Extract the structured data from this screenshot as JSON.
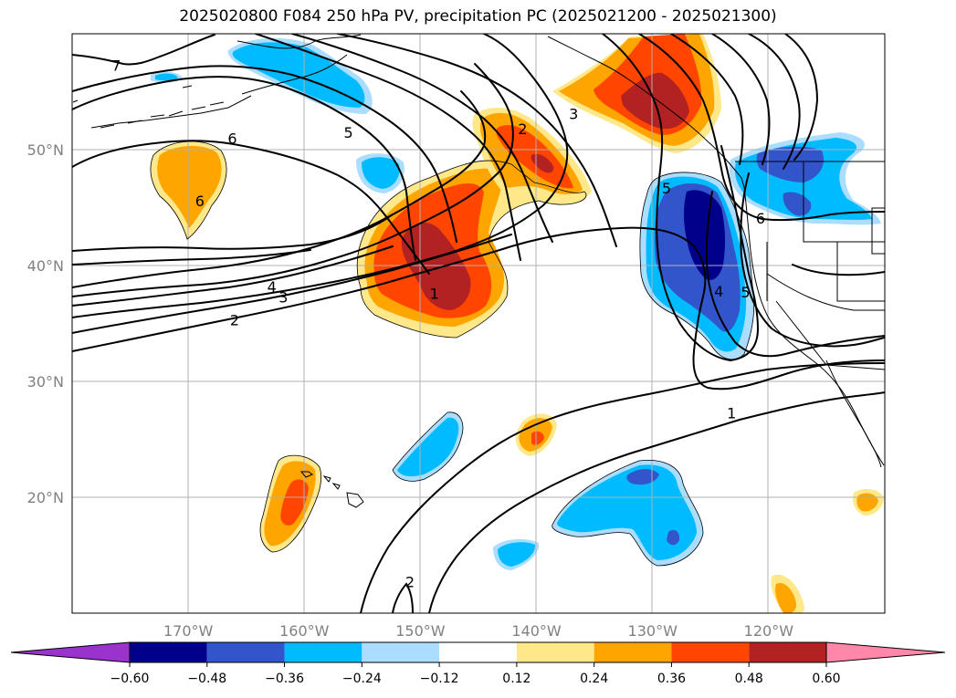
{
  "chart_data": {
    "type": "contour-map",
    "title": "2025020800 F084 250 hPa PV, precipitation PC (2025021200 - 2025021300)",
    "map_extent": {
      "lon": [
        -180,
        -110
      ],
      "lat": [
        10,
        60
      ]
    },
    "x_ticks": [
      {
        "lon": -170,
        "label": "170°W"
      },
      {
        "lon": -160,
        "label": "160°W"
      },
      {
        "lon": -150,
        "label": "150°W"
      },
      {
        "lon": -140,
        "label": "140°W"
      },
      {
        "lon": -130,
        "label": "130°W"
      },
      {
        "lon": -120,
        "label": "120°W"
      }
    ],
    "y_ticks": [
      {
        "lat": 50,
        "label": "50°N"
      },
      {
        "lat": 40,
        "label": "40°N"
      },
      {
        "lat": 30,
        "label": "30°N"
      },
      {
        "lat": 20,
        "label": "20°N"
      }
    ],
    "grid": true,
    "colorbar": {
      "levels": [
        -0.6,
        -0.48,
        -0.36,
        -0.24,
        -0.12,
        0.12,
        0.24,
        0.36,
        0.48,
        0.6
      ],
      "tick_labels": [
        "−0.60",
        "−0.48",
        "−0.36",
        "−0.24",
        "−0.12",
        "0.12",
        "0.24",
        "0.36",
        "0.48",
        "0.60"
      ],
      "colors": [
        "#9933cc",
        "#00008b",
        "#3355cc",
        "#00bbff",
        "#aaddff",
        "#ffffff",
        "#ffe88a",
        "#ffa500",
        "#ff4500",
        "#b22222",
        "#ff88aa"
      ],
      "extend": "both"
    },
    "pv_contour_labels": [
      {
        "value": "7",
        "lon": -176.2,
        "lat": 57.3
      },
      {
        "value": "6",
        "lon": -166.2,
        "lat": 51.0
      },
      {
        "value": "5",
        "lon": -156.2,
        "lat": 51.5
      },
      {
        "value": "6",
        "lon": -169.0,
        "lat": 45.6
      },
      {
        "value": "2",
        "lon": -141.2,
        "lat": 51.8
      },
      {
        "value": "3",
        "lon": -136.8,
        "lat": 53.1
      },
      {
        "value": "4",
        "lon": -162.8,
        "lat": 38.2
      },
      {
        "value": "3",
        "lon": -161.8,
        "lat": 37.3
      },
      {
        "value": "2",
        "lon": -166.0,
        "lat": 35.3
      },
      {
        "value": "1",
        "lon": -148.8,
        "lat": 37.6
      },
      {
        "value": "5",
        "lon": -128.8,
        "lat": 46.7
      },
      {
        "value": "6",
        "lon": -120.7,
        "lat": 44.1
      },
      {
        "value": "4",
        "lon": -124.3,
        "lat": 37.8
      },
      {
        "value": "5",
        "lon": -122.0,
        "lat": 37.7
      },
      {
        "value": "1",
        "lon": -123.2,
        "lat": 27.3
      },
      {
        "value": "2",
        "lon": -150.9,
        "lat": 12.7
      }
    ],
    "precip_pc_regions": [
      {
        "sign": "positive",
        "peak": 0.48,
        "center_lon": -148,
        "center_lat": 40
      },
      {
        "sign": "positive",
        "peak": 0.48,
        "center_lon": -140,
        "center_lat": 49
      },
      {
        "sign": "positive",
        "peak": 0.48,
        "center_lon": -129,
        "center_lat": 56
      },
      {
        "sign": "positive",
        "peak": 0.24,
        "center_lon": -170,
        "center_lat": 48
      },
      {
        "sign": "positive",
        "peak": 0.36,
        "center_lon": -161,
        "center_lat": 20
      },
      {
        "sign": "positive",
        "peak": 0.36,
        "center_lon": -140,
        "center_lat": 25
      },
      {
        "sign": "negative",
        "peak": -0.6,
        "center_lon": -126,
        "center_lat": 42
      },
      {
        "sign": "negative",
        "peak": -0.48,
        "center_lon": -118,
        "center_lat": 48
      },
      {
        "sign": "negative",
        "peak": -0.36,
        "center_lon": -158,
        "center_lat": 56
      },
      {
        "sign": "negative",
        "peak": -0.36,
        "center_lon": -130,
        "center_lat": 19
      },
      {
        "sign": "negative",
        "peak": -0.24,
        "center_lon": -146,
        "center_lat": 23
      }
    ]
  }
}
